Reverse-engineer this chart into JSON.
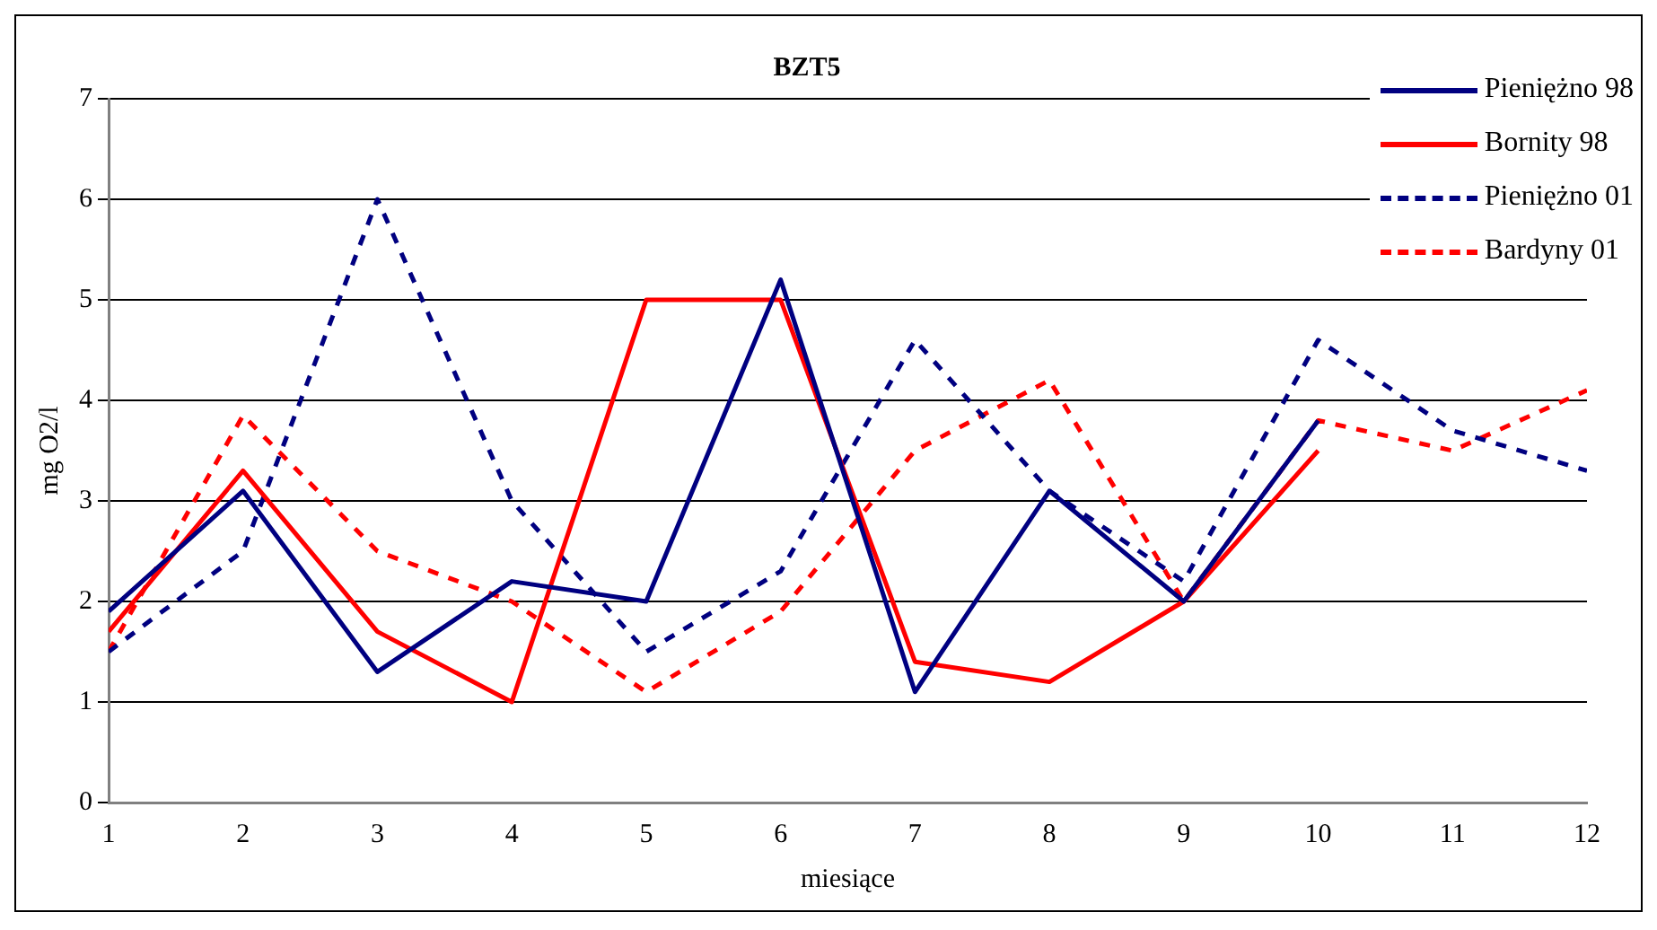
{
  "chart_data": {
    "type": "line",
    "title": "BZT5",
    "xlabel": "miesiące",
    "ylabel": "mg O2/l",
    "x": [
      1,
      2,
      3,
      4,
      5,
      6,
      7,
      8,
      9,
      10,
      11,
      12
    ],
    "xlim": [
      1,
      12
    ],
    "xticks": [
      1,
      2,
      3,
      4,
      5,
      6,
      7,
      8,
      9,
      10,
      11,
      12
    ],
    "ylim": [
      0,
      7
    ],
    "yticks": [
      0,
      1,
      2,
      3,
      4,
      5,
      6,
      7
    ],
    "grid": "y",
    "legend": "top right",
    "marker": "none",
    "series": [
      {
        "name": "Pieniężno 98",
        "color": "#000080",
        "line_style": "solid",
        "values": [
          1.9,
          3.1,
          1.3,
          2.2,
          2.0,
          5.2,
          1.1,
          3.1,
          2.0,
          3.8,
          null,
          null
        ]
      },
      {
        "name": "Bornity 98",
        "color": "#ff0000",
        "line_style": "solid",
        "values": [
          1.7,
          3.3,
          1.7,
          1.0,
          5.0,
          5.0,
          1.4,
          1.2,
          2.0,
          3.5,
          null,
          null
        ]
      },
      {
        "name": "Pieniężno 01",
        "color": "#000080",
        "line_style": "dashed",
        "values": [
          1.5,
          2.5,
          6.0,
          3.0,
          1.5,
          2.3,
          4.6,
          3.1,
          2.2,
          4.6,
          3.7,
          3.3
        ]
      },
      {
        "name": "Bardyny 01",
        "color": "#ff0000",
        "line_style": "dashed",
        "values": [
          1.5,
          3.85,
          2.5,
          2.0,
          1.1,
          1.9,
          3.5,
          4.2,
          2.0,
          3.8,
          3.5,
          4.1
        ]
      }
    ]
  }
}
